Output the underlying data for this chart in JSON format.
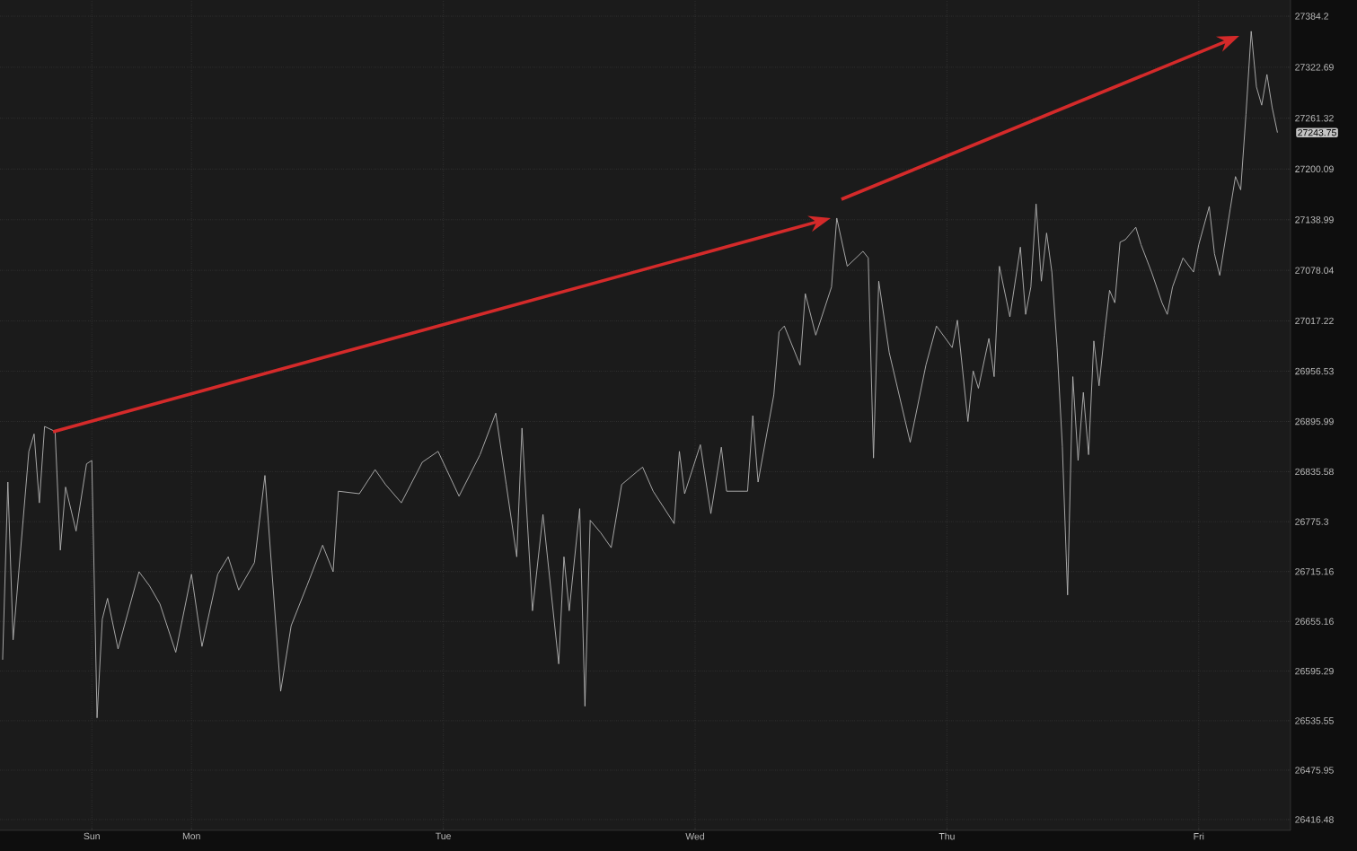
{
  "chart_data": {
    "type": "line",
    "color": "#b4b4b4",
    "grid": true,
    "ylim": [
      26403.5,
      27403.7
    ],
    "yticks": [
      26416.48,
      26475.95,
      26535.55,
      26595.29,
      26655.16,
      26715.16,
      26775.3,
      26835.58,
      26895.99,
      26956.53,
      27017.22,
      27078.04,
      27138.99,
      27200.09,
      27261.32,
      27322.69,
      27384.2
    ],
    "annotations": [
      "27243.75"
    ],
    "categories": [
      null,
      null,
      null,
      null,
      null,
      null,
      null,
      null,
      null,
      null,
      null,
      null,
      null,
      null,
      null,
      null,
      null,
      "Sun",
      null,
      null,
      null,
      null,
      null,
      null,
      null,
      null,
      null,
      null,
      null,
      null,
      null,
      null,
      null,
      null,
      null,
      null,
      "Mon",
      null,
      null,
      null,
      null,
      null,
      null,
      null,
      null,
      null,
      null,
      null,
      null,
      null,
      null,
      null,
      null,
      null,
      null,
      null,
      null,
      null,
      null,
      null,
      null,
      null,
      null,
      null,
      null,
      null,
      null,
      null,
      null,
      null,
      null,
      null,
      null,
      null,
      null,
      null,
      null,
      null,
      null,
      null,
      null,
      null,
      null,
      null,
      "Tue",
      null,
      null,
      null,
      null,
      null,
      null,
      null,
      null,
      null,
      null,
      null,
      null,
      null,
      null,
      null,
      null,
      null,
      null,
      null,
      null,
      null,
      null,
      null,
      null,
      null,
      null,
      null,
      null,
      null,
      null,
      null,
      null,
      null,
      null,
      null,
      null,
      null,
      null,
      null,
      null,
      null,
      null,
      null,
      null,
      null,
      null,
      null,
      "Wed",
      null,
      null,
      null,
      null,
      null,
      null,
      null,
      null,
      null,
      null,
      null,
      null,
      null,
      null,
      null,
      null,
      null,
      null,
      null,
      null,
      null,
      null,
      null,
      null,
      null,
      null,
      null,
      null,
      null,
      null,
      null,
      null,
      null,
      null,
      null,
      null,
      null,
      null,
      null,
      null,
      null,
      null,
      null,
      null,
      null,
      null,
      null,
      "Thu",
      null,
      null,
      null,
      null,
      null,
      null,
      null,
      null,
      null,
      null,
      null,
      null,
      null,
      null,
      null,
      null,
      null,
      null,
      null,
      null,
      null,
      null,
      null,
      null,
      null,
      null,
      null,
      null,
      null,
      null,
      null,
      null,
      null,
      null,
      null,
      null,
      null,
      null,
      null,
      null,
      null,
      null,
      null,
      null,
      null,
      null,
      null,
      "Fri",
      null,
      null,
      null,
      null,
      null,
      null,
      null,
      null,
      null,
      null,
      null,
      null,
      null,
      null,
      null,
      null,
      null
    ],
    "values": [
      26609,
      26823,
      26633,
      null,
      null,
      26860,
      26881,
      26798,
      26890,
      null,
      26884,
      26741,
      26817,
      null,
      26764,
      null,
      26845,
      26849,
      26539,
      26658,
      26683,
      null,
      26622,
      null,
      null,
      null,
      26715,
      null,
      26698,
      null,
      26676,
      null,
      null,
      26618,
      null,
      null,
      26712,
      null,
      26625,
      null,
      null,
      26712,
      null,
      26733,
      null,
      26693,
      null,
      null,
      26726,
      null,
      26831,
      null,
      null,
      26571,
      null,
      26650,
      null,
      null,
      26698,
      null,
      null,
      26747,
      null,
      26715,
      26812,
      null,
      null,
      null,
      26809,
      null,
      null,
      26838,
      null,
      26820,
      null,
      null,
      26798,
      null,
      null,
      null,
      26847,
      null,
      null,
      26860,
      null,
      null,
      null,
      26806,
      null,
      null,
      null,
      26856,
      null,
      null,
      26906,
      null,
      26820,
      null,
      26733,
      26888,
      null,
      26668,
      null,
      26784,
      null,
      null,
      26604,
      26733,
      26668,
      null,
      26791,
      26553,
      26777,
      null,
      26762,
      null,
      26744,
      null,
      26820,
      null,
      null,
      26836,
      26841,
      null,
      26812,
      null,
      null,
      null,
      26773,
      26860,
      26809,
      null,
      null,
      26868,
      null,
      26785,
      null,
      26865,
      26812,
      null,
      null,
      null,
      26812,
      26903,
      26823,
      null,
      null,
      26928,
      27004,
      27011,
      null,
      null,
      26964,
      27050,
      null,
      27000,
      null,
      null,
      27058,
      27141,
      null,
      27083,
      null,
      null,
      27101,
      27093,
      26852,
      27065,
      null,
      26979,
      null,
      null,
      null,
      26871,
      null,
      null,
      26964,
      null,
      27011,
      null,
      null,
      26985,
      27018,
      null,
      26896,
      26957,
      26936,
      null,
      26996,
      26950,
      27083,
      null,
      27022,
      null,
      27106,
      27025,
      27058,
      27158,
      27065,
      27123,
      27076,
      26985,
      26866,
      26687,
      26950,
      26849,
      26931,
      26856,
      26993,
      26939,
      27000,
      27054,
      27039,
      27112,
      27115,
      null,
      27130,
      27109,
      null,
      27076,
      null,
      27039,
      27025,
      27058,
      null,
      27093,
      null,
      27076,
      27109,
      null,
      27155,
      27098,
      27072,
      null,
      27152,
      27191,
      27175,
      27266,
      27366,
      27299,
      27277,
      27314,
      27274,
      27244,
      null,
      null
    ]
  }
}
